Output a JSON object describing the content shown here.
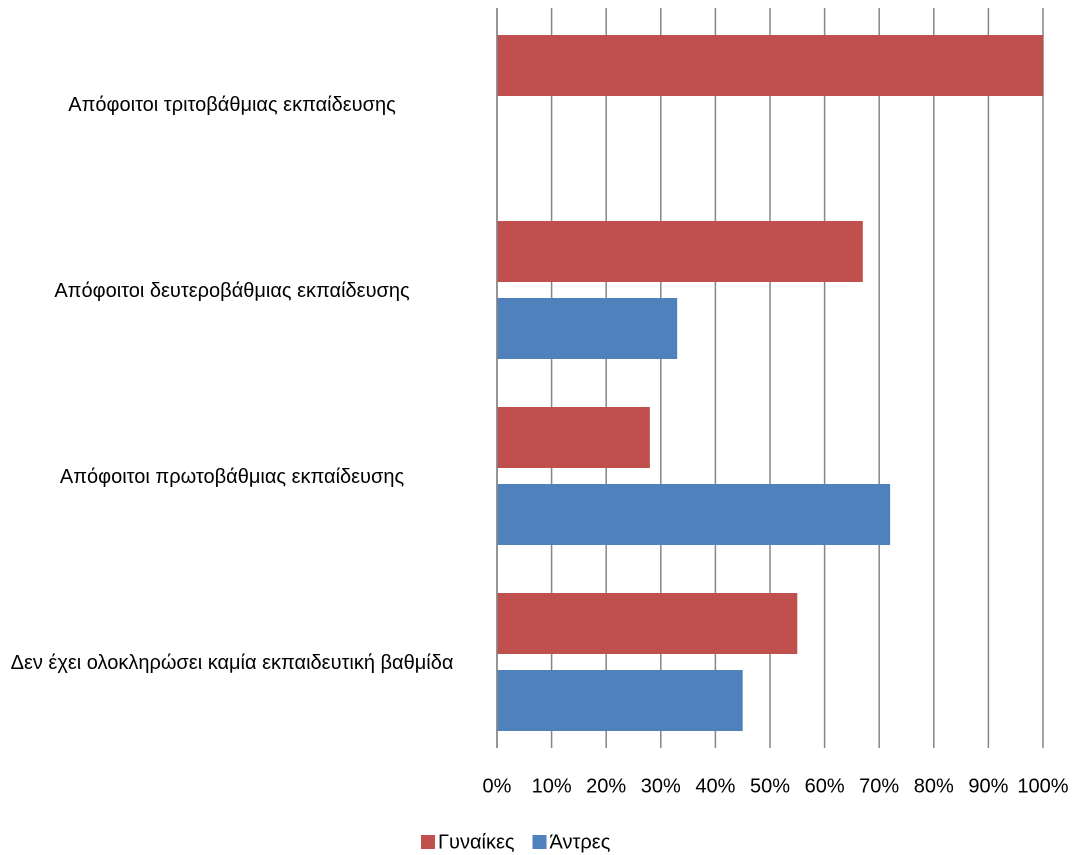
{
  "chart_data": {
    "type": "barh",
    "categories": [
      "Απόφοιτοι τριτοβάθμιας εκπαίδευσης",
      "Απόφοιτοι δευτεροβάθμιας εκπαίδευσης",
      "Απόφοιτοι πρωτοβάθμιας εκπαίδευσης",
      "Δεν έχει ολοκληρώσει καμία εκπαιδευτική βαθμίδα"
    ],
    "series": [
      {
        "name": "Γυναίκες",
        "color": "#c0504d",
        "values": [
          100,
          67,
          28,
          55
        ]
      },
      {
        "name": "Άντρες",
        "color": "#4f81bd",
        "values": [
          0,
          33,
          72,
          45
        ]
      }
    ],
    "xlim": [
      0,
      100
    ],
    "xticks": [
      {
        "value": 0,
        "label": "0%"
      },
      {
        "value": 10,
        "label": "10%"
      },
      {
        "value": 20,
        "label": "20%"
      },
      {
        "value": 30,
        "label": "30%"
      },
      {
        "value": 40,
        "label": "40%"
      },
      {
        "value": 50,
        "label": "50%"
      },
      {
        "value": 60,
        "label": "60%"
      },
      {
        "value": 70,
        "label": "70%"
      },
      {
        "value": 80,
        "label": "80%"
      },
      {
        "value": 90,
        "label": "90%"
      },
      {
        "value": 100,
        "label": "100%"
      }
    ],
    "grid": true,
    "legend": "bottom"
  }
}
